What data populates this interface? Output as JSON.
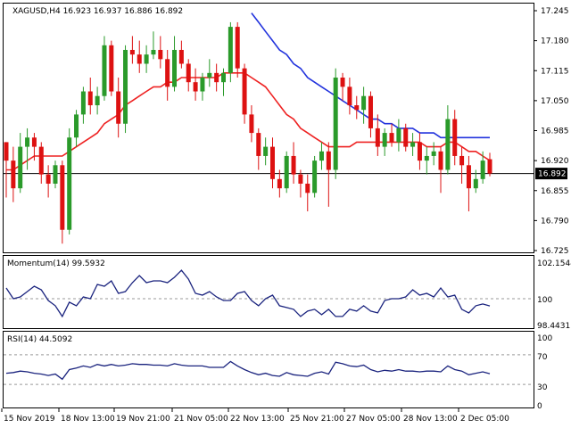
{
  "chart_data": [
    {
      "panel": "price",
      "type": "candlestick",
      "symbol_line": "XAGUSD,H4  16.923 16.937 16.886 16.892",
      "current_price_label": "16.892",
      "current_price": 16.892,
      "ylim": [
        16.725,
        17.245
      ],
      "y_ticks": [
        "17.245",
        "17.180",
        "17.115",
        "17.050",
        "16.985",
        "16.920",
        "16.855",
        "16.790",
        "16.725"
      ],
      "x_labels": [
        "15 Nov 2019",
        "18 Nov 13:00",
        "19 Nov 21:00",
        "21 Nov 05:00",
        "22 Nov 13:00",
        "25 Nov 21:00",
        "27 Nov 05:00",
        "28 Nov 13:00",
        "2 Dec 05:00"
      ],
      "colors": {
        "up": "#2a9a2a",
        "down": "#dd1111",
        "ma_fast": "#ee2222",
        "ma_slow": "#2233dd",
        "price_line": "#000000"
      },
      "candles": [
        [
          16.96,
          16.96,
          16.84,
          16.92
        ],
        [
          16.92,
          16.95,
          16.83,
          16.86
        ],
        [
          16.86,
          16.98,
          16.85,
          16.95
        ],
        [
          16.95,
          16.99,
          16.9,
          16.97
        ],
        [
          16.97,
          16.98,
          16.92,
          16.95
        ],
        [
          16.95,
          16.96,
          16.87,
          16.89
        ],
        [
          16.89,
          16.91,
          16.84,
          16.87
        ],
        [
          16.87,
          16.92,
          16.86,
          16.91
        ],
        [
          16.91,
          16.92,
          16.74,
          16.77
        ],
        [
          16.77,
          16.99,
          16.76,
          16.97
        ],
        [
          16.97,
          17.03,
          16.95,
          17.02
        ],
        [
          17.02,
          17.08,
          17.0,
          17.07
        ],
        [
          17.07,
          17.1,
          17.02,
          17.04
        ],
        [
          17.04,
          17.08,
          17.02,
          17.06
        ],
        [
          17.06,
          17.19,
          17.05,
          17.17
        ],
        [
          17.17,
          17.18,
          17.06,
          17.07
        ],
        [
          17.07,
          17.1,
          16.97,
          17.0
        ],
        [
          17.0,
          17.17,
          16.98,
          17.16
        ],
        [
          17.16,
          17.19,
          17.13,
          17.15
        ],
        [
          17.15,
          17.18,
          17.11,
          17.13
        ],
        [
          17.13,
          17.17,
          17.11,
          17.15
        ],
        [
          17.15,
          17.2,
          17.14,
          17.16
        ],
        [
          17.16,
          17.19,
          17.12,
          17.14
        ],
        [
          17.14,
          17.16,
          17.05,
          17.08
        ],
        [
          17.08,
          17.19,
          17.07,
          17.16
        ],
        [
          17.16,
          17.18,
          17.12,
          17.13
        ],
        [
          17.13,
          17.14,
          17.07,
          17.09
        ],
        [
          17.09,
          17.12,
          17.05,
          17.07
        ],
        [
          17.07,
          17.11,
          17.05,
          17.1
        ],
        [
          17.1,
          17.14,
          17.08,
          17.11
        ],
        [
          17.11,
          17.13,
          17.07,
          17.09
        ],
        [
          17.09,
          17.12,
          17.06,
          17.11
        ],
        [
          17.11,
          17.22,
          17.09,
          17.21
        ],
        [
          17.21,
          17.22,
          17.1,
          17.12
        ],
        [
          17.12,
          17.13,
          17.0,
          17.02
        ],
        [
          17.02,
          17.04,
          16.96,
          16.98
        ],
        [
          16.98,
          16.99,
          16.9,
          16.93
        ],
        [
          16.93,
          16.97,
          16.91,
          16.95
        ],
        [
          16.95,
          16.97,
          16.86,
          16.88
        ],
        [
          16.88,
          16.9,
          16.84,
          16.86
        ],
        [
          16.86,
          16.94,
          16.85,
          16.93
        ],
        [
          16.93,
          16.96,
          16.87,
          16.89
        ],
        [
          16.89,
          16.9,
          16.84,
          16.87
        ],
        [
          16.87,
          16.89,
          16.81,
          16.85
        ],
        [
          16.85,
          16.93,
          16.84,
          16.92
        ],
        [
          16.92,
          16.96,
          16.9,
          16.94
        ],
        [
          16.94,
          16.96,
          16.82,
          16.9
        ],
        [
          16.9,
          17.12,
          16.88,
          17.1
        ],
        [
          17.1,
          17.11,
          17.05,
          17.08
        ],
        [
          17.08,
          17.1,
          17.02,
          17.04
        ],
        [
          17.04,
          17.06,
          17.01,
          17.03
        ],
        [
          17.03,
          17.08,
          17.0,
          17.06
        ],
        [
          17.06,
          17.07,
          16.97,
          16.99
        ],
        [
          16.99,
          17.02,
          16.93,
          16.95
        ],
        [
          16.95,
          16.99,
          16.93,
          16.98
        ],
        [
          16.98,
          17.0,
          16.95,
          16.96
        ],
        [
          16.96,
          17.01,
          16.94,
          16.99
        ],
        [
          16.99,
          17.0,
          16.94,
          16.95
        ],
        [
          16.95,
          16.98,
          16.93,
          16.96
        ],
        [
          16.96,
          16.98,
          16.9,
          16.92
        ],
        [
          16.92,
          16.95,
          16.89,
          16.93
        ],
        [
          16.93,
          16.96,
          16.91,
          16.94
        ],
        [
          16.94,
          16.95,
          16.85,
          16.9
        ],
        [
          16.9,
          17.04,
          16.89,
          17.01
        ],
        [
          17.01,
          17.03,
          16.91,
          16.93
        ],
        [
          16.93,
          16.95,
          16.87,
          16.91
        ],
        [
          16.91,
          16.93,
          16.81,
          16.86
        ],
        [
          16.86,
          16.9,
          16.85,
          16.88
        ],
        [
          16.88,
          16.94,
          16.87,
          16.92
        ],
        [
          16.923,
          16.937,
          16.886,
          16.892
        ]
      ],
      "ma_fast_values": [
        16.9,
        16.9,
        16.91,
        16.92,
        16.93,
        16.93,
        16.93,
        16.93,
        16.93,
        16.94,
        16.95,
        16.96,
        16.97,
        16.98,
        17.0,
        17.01,
        17.02,
        17.04,
        17.05,
        17.06,
        17.07,
        17.08,
        17.08,
        17.09,
        17.09,
        17.1,
        17.1,
        17.1,
        17.1,
        17.1,
        17.1,
        17.11,
        17.11,
        17.11,
        17.11,
        17.1,
        17.09,
        17.08,
        17.06,
        17.04,
        17.02,
        17.01,
        16.99,
        16.98,
        16.97,
        16.96,
        16.95,
        16.95,
        16.95,
        16.95,
        16.96,
        16.96,
        16.96,
        16.96,
        16.96,
        16.96,
        16.96,
        16.96,
        16.96,
        16.96,
        16.95,
        16.95,
        16.95,
        16.96,
        16.96,
        16.95,
        16.94,
        16.94,
        16.93,
        16.92
      ],
      "ma_slow_values": [
        null,
        null,
        null,
        null,
        null,
        null,
        null,
        null,
        null,
        null,
        null,
        null,
        null,
        null,
        null,
        null,
        null,
        null,
        null,
        null,
        null,
        null,
        null,
        null,
        null,
        null,
        null,
        null,
        null,
        null,
        null,
        null,
        null,
        null,
        null,
        17.24,
        17.22,
        17.2,
        17.18,
        17.16,
        17.15,
        17.13,
        17.12,
        17.1,
        17.09,
        17.08,
        17.07,
        17.06,
        17.05,
        17.04,
        17.03,
        17.02,
        17.01,
        17.01,
        17.0,
        17.0,
        16.99,
        16.99,
        16.99,
        16.98,
        16.98,
        16.98,
        16.97,
        16.97,
        16.97,
        16.97,
        16.97,
        16.97,
        16.97,
        16.97
      ]
    },
    {
      "panel": "momentum",
      "type": "line",
      "title": "Momentum(14) 99.5932",
      "ylim": [
        98.4431,
        102.1544
      ],
      "y_ticks": [
        "102.1544",
        "100",
        "98.4431"
      ],
      "reference_level": 100,
      "color": "#1a237e",
      "values": [
        100.6,
        100.0,
        100.1,
        100.4,
        100.7,
        100.5,
        99.9,
        99.6,
        99.0,
        99.8,
        99.6,
        100.1,
        100.0,
        100.8,
        100.7,
        101.0,
        100.3,
        100.4,
        100.9,
        101.3,
        100.9,
        101.0,
        101.0,
        100.9,
        101.2,
        101.6,
        101.1,
        100.3,
        100.2,
        100.4,
        100.1,
        99.9,
        99.9,
        100.3,
        100.4,
        99.9,
        99.6,
        100.0,
        100.2,
        99.6,
        99.5,
        99.4,
        99.0,
        99.3,
        99.4,
        99.1,
        99.4,
        99.0,
        99.0,
        99.4,
        99.3,
        99.6,
        99.3,
        99.2,
        99.9,
        100.0,
        100.0,
        100.1,
        100.5,
        100.2,
        100.3,
        100.1,
        100.6,
        100.1,
        100.2,
        99.4,
        99.2,
        99.6,
        99.7,
        99.59
      ]
    },
    {
      "panel": "rsi",
      "type": "line",
      "title": "RSI(14) 44.5092",
      "ylim": [
        0,
        100
      ],
      "y_ticks": [
        "100",
        "70",
        "30",
        "0"
      ],
      "levels": [
        70,
        30
      ],
      "color": "#1a237e",
      "values": [
        45,
        46,
        48,
        47,
        45,
        44,
        42,
        44,
        37,
        50,
        52,
        55,
        53,
        57,
        55,
        57,
        55,
        56,
        58,
        57,
        57,
        56,
        56,
        55,
        58,
        56,
        55,
        55,
        55,
        53,
        53,
        53,
        61,
        55,
        50,
        46,
        43,
        45,
        42,
        41,
        46,
        43,
        42,
        41,
        45,
        47,
        44,
        60,
        58,
        55,
        54,
        56,
        50,
        47,
        49,
        48,
        50,
        48,
        48,
        47,
        48,
        48,
        47,
        55,
        50,
        48,
        43,
        45,
        47,
        44.51
      ]
    }
  ]
}
